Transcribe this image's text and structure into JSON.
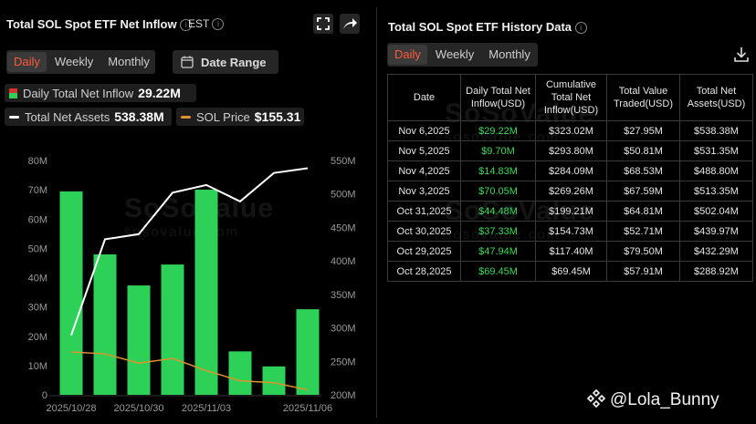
{
  "left": {
    "title": "Total SOL Spot ETF Net Inflow",
    "timezone": "EST",
    "tabs": [
      {
        "label": "Daily",
        "active": true
      },
      {
        "label": "Weekly",
        "active": false
      },
      {
        "label": "Monthly",
        "active": false
      }
    ],
    "date_range_label": "Date Range",
    "legend": {
      "daily_label": "Daily Total Net Inflow",
      "daily_value": "29.22M",
      "assets_label": "Total Net Assets",
      "assets_value": "538.38M",
      "price_label": "SOL Price",
      "price_value": "$155.31"
    },
    "watermark": {
      "main": "SoSoValue",
      "sub": "sosovalue.com"
    }
  },
  "right": {
    "title": "Total SOL Spot ETF History Data",
    "tabs": [
      {
        "label": "Daily",
        "active": true
      },
      {
        "label": "Weekly",
        "active": false
      },
      {
        "label": "Monthly",
        "active": false
      }
    ],
    "table": {
      "headers": [
        "Date",
        "Daily Total Net Inflow(USD)",
        "Cumulative Total Net Inflow(USD)",
        "Total Value Traded(USD)",
        "Total Net Assets(USD)"
      ],
      "rows": [
        [
          "Nov 6,2025",
          "$29.22M",
          "$323.02M",
          "$27.95M",
          "$538.38M"
        ],
        [
          "Nov 5,2025",
          "$9.70M",
          "$293.80M",
          "$50.81M",
          "$531.35M"
        ],
        [
          "Nov 4,2025",
          "$14.83M",
          "$284.09M",
          "$68.53M",
          "$488.80M"
        ],
        [
          "Nov 3,2025",
          "$70.05M",
          "$269.26M",
          "$67.59M",
          "$513.35M"
        ],
        [
          "Oct 31,2025",
          "$44.48M",
          "$199.21M",
          "$64.81M",
          "$502.04M"
        ],
        [
          "Oct 30,2025",
          "$37.33M",
          "$154.73M",
          "$52.71M",
          "$439.97M"
        ],
        [
          "Oct 29,2025",
          "$47.94M",
          "$117.40M",
          "$79.50M",
          "$432.29M"
        ],
        [
          "Oct 28,2025",
          "$69.45M",
          "$69.45M",
          "$57.91M",
          "$288.92M"
        ]
      ]
    }
  },
  "credit": "@Lola_Bunny",
  "colors": {
    "bar": "#2ed158",
    "assets_line": "#ffffff",
    "price_line": "#e0922c",
    "accent": "#ff5a3c"
  },
  "chart_data": {
    "type": "bar",
    "categories": [
      "2025/10/28",
      "2025/10/29",
      "2025/10/30",
      "2025/10/31",
      "2025/11/03",
      "2025/11/04",
      "2025/11/05",
      "2025/11/06"
    ],
    "x_tick_labels": [
      "2025/10/28",
      "2025/10/30",
      "2025/11/03",
      "2025/11/06"
    ],
    "series": [
      {
        "name": "Daily Total Net Inflow",
        "type": "bar",
        "axis": "left",
        "values": [
          69.45,
          47.94,
          37.33,
          44.48,
          70.05,
          14.83,
          9.7,
          29.22
        ]
      },
      {
        "name": "Total Net Assets",
        "type": "line",
        "axis": "right",
        "values": [
          288.92,
          432.29,
          439.97,
          502.04,
          513.35,
          488.8,
          531.35,
          538.38
        ]
      },
      {
        "name": "SOL Price",
        "type": "line",
        "axis": "right_scaled",
        "values": [
          196,
          194,
          184,
          189,
          176,
          165,
          163,
          155.31
        ]
      }
    ],
    "y_left": {
      "ticks": [
        "0",
        "10M",
        "20M",
        "30M",
        "40M",
        "50M",
        "60M",
        "70M",
        "80M"
      ],
      "range": [
        0,
        80
      ]
    },
    "y_right": {
      "ticks": [
        "200M",
        "250M",
        "300M",
        "350M",
        "400M",
        "450M",
        "500M",
        "550M"
      ],
      "range": [
        200,
        550
      ]
    },
    "grid": false,
    "legend": "top-left"
  }
}
